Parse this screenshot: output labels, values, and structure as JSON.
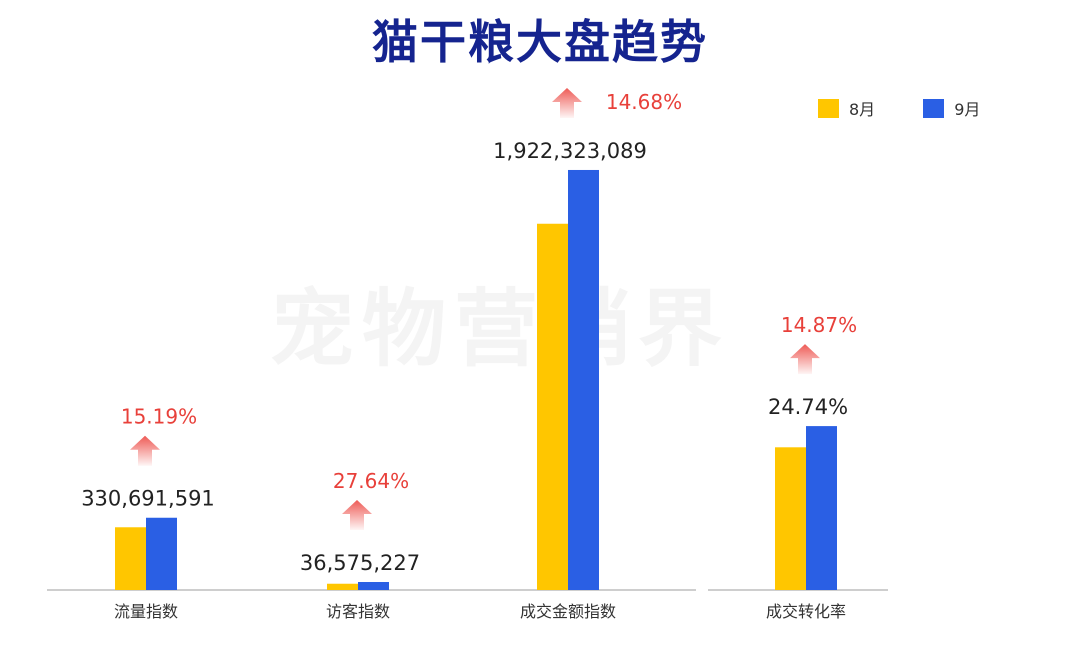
{
  "title": "猫干粮大盘趋势",
  "watermark": "宠物营销界",
  "colors": {
    "title": "#15248f",
    "aug": "#ffc600",
    "sep": "#2a5fe4",
    "growth": "#e8403a",
    "axis": "#bdbdbd"
  },
  "legend": [
    {
      "label": "8月",
      "color": "#ffc600"
    },
    {
      "label": "9月",
      "color": "#2a5fe4"
    }
  ],
  "chart_data": [
    {
      "type": "bar",
      "categories": [
        "流量指数",
        "访客指数",
        "成交金额指数"
      ],
      "series": [
        {
          "name": "8月",
          "values": [
            287093000,
            28655000,
            1676200000
          ]
        },
        {
          "name": "9月",
          "values": [
            330691591,
            36575227,
            1922323089
          ]
        }
      ],
      "data_labels": [
        "330,691,591",
        "36,575,227",
        "1,922,323,089"
      ],
      "growth_labels": [
        "15.19%",
        "27.64%",
        "14.68%"
      ],
      "ylim": [
        0,
        2000000000
      ],
      "legend": "top-right",
      "grid": false
    },
    {
      "type": "bar",
      "categories": [
        "成交转化率"
      ],
      "series": [
        {
          "name": "8月",
          "values": [
            21.54
          ]
        },
        {
          "name": "9月",
          "values": [
            24.74
          ]
        }
      ],
      "data_labels": [
        "24.74%"
      ],
      "growth_labels": [
        "14.87%"
      ],
      "ylim": [
        0,
        40
      ],
      "grid": false
    }
  ]
}
